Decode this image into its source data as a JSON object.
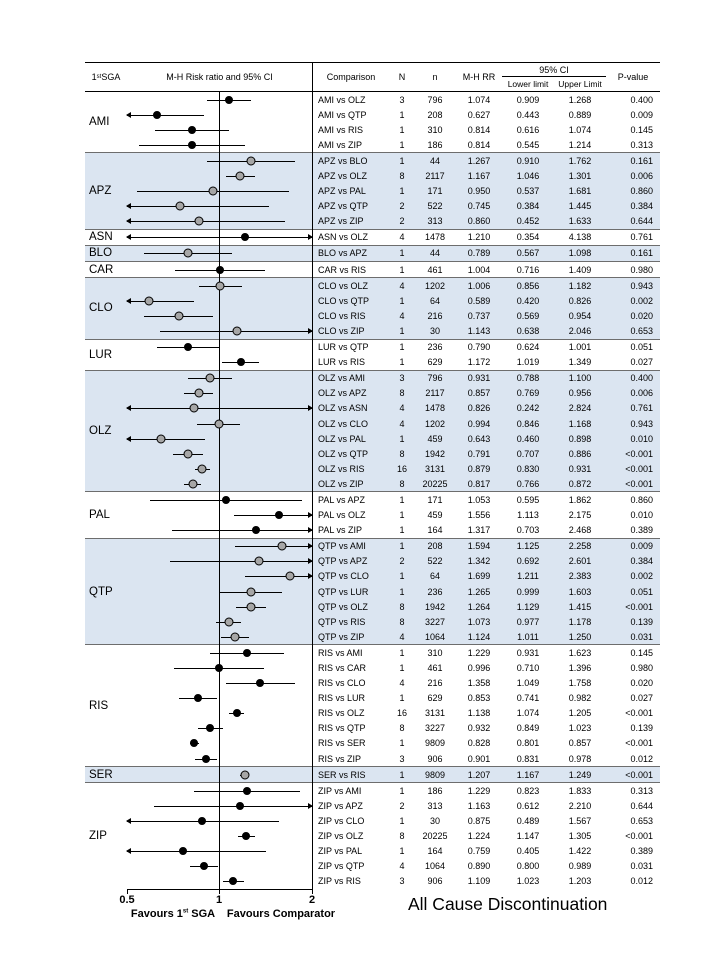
{
  "title": "All Cause Discontinuation",
  "header": {
    "sga": {
      "base": "1",
      "sup": "st",
      "rest": " SGA"
    },
    "plot": "M-H Risk ratio and 95% CI",
    "comparison": "Comparison",
    "N": "N",
    "n": "n",
    "rr": "M-H RR",
    "ci": "95% CI",
    "lower": "Lower limit",
    "upper": "Upper Limit",
    "p": "P-value"
  },
  "axis": {
    "ticks": [
      "0.5",
      "1",
      "2"
    ],
    "favours_left_base": "Favours 1",
    "favours_left_sup": "st",
    "favours_left_rest": " SGA",
    "favours_right": "Favours Comparator"
  },
  "colors": {
    "shade": "#dbe5f1",
    "marker_black": "#000000",
    "marker_gray": "#a6a6a6",
    "separator": "#6d6d6d"
  },
  "chart_data": {
    "type": "forest",
    "scale": "log",
    "axis_min": 0.5,
    "axis_max": 2,
    "row_format": [
      "comparison",
      "N",
      "n",
      "rr",
      "lower",
      "upper",
      "p"
    ],
    "groups": [
      {
        "sga": "AMI",
        "shaded": false,
        "rows": [
          [
            "AMI vs OLZ",
            3,
            796,
            1.074,
            0.909,
            1.268,
            "0.400"
          ],
          [
            "AMI vs QTP",
            1,
            208,
            0.627,
            0.443,
            0.889,
            "0.009"
          ],
          [
            "AMI vs RIS",
            1,
            310,
            0.814,
            0.616,
            1.074,
            "0.145"
          ],
          [
            "AMI vs ZIP",
            1,
            186,
            0.814,
            0.545,
            1.214,
            "0.313"
          ]
        ]
      },
      {
        "sga": "APZ",
        "shaded": true,
        "rows": [
          [
            "APZ vs BLO",
            1,
            44,
            1.267,
            0.91,
            1.762,
            "0.161"
          ],
          [
            "APZ vs OLZ",
            8,
            2117,
            1.167,
            1.046,
            1.301,
            "0.006"
          ],
          [
            "APZ vs PAL",
            1,
            171,
            0.95,
            0.537,
            1.681,
            "0.860"
          ],
          [
            "APZ vs QTP",
            2,
            522,
            0.745,
            0.384,
            1.445,
            "0.384"
          ],
          [
            "APZ vs ZIP",
            2,
            313,
            0.86,
            0.452,
            1.633,
            "0.644"
          ]
        ]
      },
      {
        "sga": "ASN",
        "shaded": false,
        "rows": [
          [
            "ASN vs OLZ",
            4,
            1478,
            1.21,
            0.354,
            4.138,
            "0.761"
          ]
        ]
      },
      {
        "sga": "BLO",
        "shaded": true,
        "rows": [
          [
            "BLO vs APZ",
            1,
            44,
            0.789,
            0.567,
            1.098,
            "0.161"
          ]
        ]
      },
      {
        "sga": "CAR",
        "shaded": false,
        "rows": [
          [
            "CAR vs RIS",
            1,
            461,
            1.004,
            0.716,
            1.409,
            "0.980"
          ]
        ]
      },
      {
        "sga": "CLO",
        "shaded": true,
        "rows": [
          [
            "CLO vs OLZ",
            4,
            1202,
            1.006,
            0.856,
            1.182,
            "0.943"
          ],
          [
            "CLO vs QTP",
            1,
            64,
            0.589,
            0.42,
            0.826,
            "0.002"
          ],
          [
            "CLO vs RIS",
            4,
            216,
            0.737,
            0.569,
            0.954,
            "0.020"
          ],
          [
            "CLO vs ZIP",
            1,
            30,
            1.143,
            0.638,
            2.046,
            "0.653"
          ]
        ]
      },
      {
        "sga": "LUR",
        "shaded": false,
        "rows": [
          [
            "LUR vs QTP",
            1,
            236,
            0.79,
            0.624,
            1.001,
            "0.051"
          ],
          [
            "LUR vs RIS",
            1,
            629,
            1.172,
            1.019,
            1.349,
            "0.027"
          ]
        ]
      },
      {
        "sga": "OLZ",
        "shaded": true,
        "rows": [
          [
            "OLZ vs AMI",
            3,
            796,
            0.931,
            0.788,
            1.1,
            "0.400"
          ],
          [
            "OLZ vs APZ",
            8,
            2117,
            0.857,
            0.769,
            0.956,
            "0.006"
          ],
          [
            "OLZ vs ASN",
            4,
            1478,
            0.826,
            0.242,
            2.824,
            "0.761"
          ],
          [
            "OLZ vs CLO",
            4,
            1202,
            0.994,
            0.846,
            1.168,
            "0.943"
          ],
          [
            "OLZ vs PAL",
            1,
            459,
            0.643,
            0.46,
            0.898,
            "0.010"
          ],
          [
            "OLZ vs QTP",
            8,
            1942,
            0.791,
            0.707,
            0.886,
            "<0.001"
          ],
          [
            "OLZ vs RIS",
            16,
            3131,
            0.879,
            0.83,
            0.931,
            "<0.001"
          ],
          [
            "OLZ vs ZIP",
            8,
            20225,
            0.817,
            0.766,
            0.872,
            "<0.001"
          ]
        ]
      },
      {
        "sga": "PAL",
        "shaded": false,
        "rows": [
          [
            "PAL vs APZ",
            1,
            171,
            1.053,
            0.595,
            1.862,
            "0.860"
          ],
          [
            "PAL vs OLZ",
            1,
            459,
            1.556,
            1.113,
            2.175,
            "0.010"
          ],
          [
            "PAL vs ZIP",
            1,
            164,
            1.317,
            0.703,
            2.468,
            "0.389"
          ]
        ]
      },
      {
        "sga": "QTP",
        "shaded": true,
        "rows": [
          [
            "QTP vs AMI",
            1,
            208,
            1.594,
            1.125,
            2.258,
            "0.009"
          ],
          [
            "QTP vs APZ",
            2,
            522,
            1.342,
            0.692,
            2.601,
            "0.384"
          ],
          [
            "QTP vs CLO",
            1,
            64,
            1.699,
            1.211,
            2.383,
            "0.002"
          ],
          [
            "QTP vs LUR",
            1,
            236,
            1.265,
            0.999,
            1.603,
            "0.051"
          ],
          [
            "QTP vs OLZ",
            8,
            1942,
            1.264,
            1.129,
            1.415,
            "<0.001"
          ],
          [
            "QTP vs RIS",
            8,
            3227,
            1.073,
            0.977,
            1.178,
            "0.139"
          ],
          [
            "QTP vs ZIP",
            4,
            1064,
            1.124,
            1.011,
            1.25,
            "0.031"
          ]
        ]
      },
      {
        "sga": "RIS",
        "shaded": false,
        "rows": [
          [
            "RIS vs AMI",
            1,
            310,
            1.229,
            0.931,
            1.623,
            "0.145"
          ],
          [
            "RIS vs CAR",
            1,
            461,
            0.996,
            0.71,
            1.396,
            "0.980"
          ],
          [
            "RIS vs CLO",
            4,
            216,
            1.358,
            1.049,
            1.758,
            "0.020"
          ],
          [
            "RIS vs LUR",
            1,
            629,
            0.853,
            0.741,
            0.982,
            "0.027"
          ],
          [
            "RIS vs OLZ",
            16,
            3131,
            1.138,
            1.074,
            1.205,
            "<0.001"
          ],
          [
            "RIS vs QTP",
            8,
            3227,
            0.932,
            0.849,
            1.023,
            "0.139"
          ],
          [
            "RIS vs SER",
            1,
            9809,
            0.828,
            0.801,
            0.857,
            "<0.001"
          ],
          [
            "RIS vs ZIP",
            3,
            906,
            0.901,
            0.831,
            0.978,
            "0.012"
          ]
        ]
      },
      {
        "sga": "SER",
        "shaded": true,
        "rows": [
          [
            "SER vs RIS",
            1,
            9809,
            1.207,
            1.167,
            1.249,
            "<0.001"
          ]
        ]
      },
      {
        "sga": "ZIP",
        "shaded": false,
        "rows": [
          [
            "ZIP vs AMI",
            1,
            186,
            1.229,
            0.823,
            1.833,
            "0.313"
          ],
          [
            "ZIP vs APZ",
            2,
            313,
            1.163,
            0.612,
            2.21,
            "0.644"
          ],
          [
            "ZIP vs CLO",
            1,
            30,
            0.875,
            0.489,
            1.567,
            "0.653"
          ],
          [
            "ZIP vs OLZ",
            8,
            20225,
            1.224,
            1.147,
            1.305,
            "<0.001"
          ],
          [
            "ZIP vs PAL",
            1,
            164,
            0.759,
            0.405,
            1.422,
            "0.389"
          ],
          [
            "ZIP vs QTP",
            4,
            1064,
            0.89,
            0.8,
            0.989,
            "0.031"
          ],
          [
            "ZIP vs RIS",
            3,
            906,
            1.109,
            1.023,
            1.203,
            "0.012"
          ]
        ]
      }
    ]
  }
}
